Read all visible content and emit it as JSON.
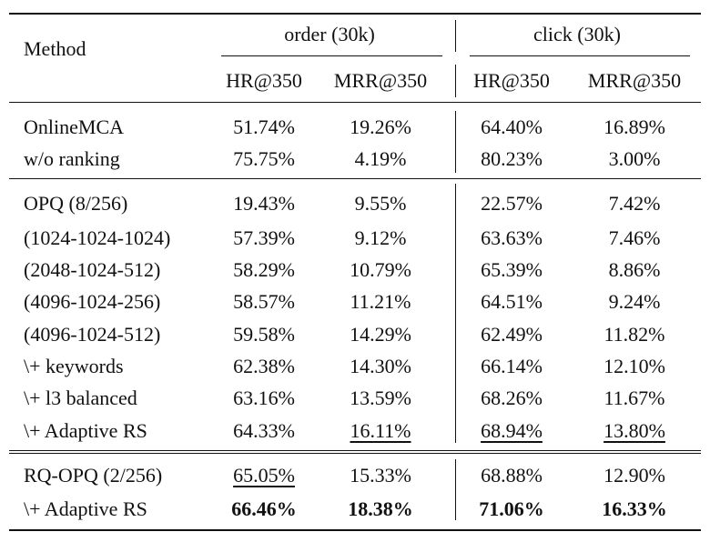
{
  "header": {
    "method": "Method",
    "groups": [
      "order (30k)",
      "click (30k)"
    ],
    "metrics": [
      "HR@350",
      "MRR@350",
      "HR@350",
      "MRR@350"
    ]
  },
  "groups": [
    {
      "rows": [
        {
          "method": "OnlineMCA",
          "values": [
            "51.74%",
            "19.26%",
            "64.40%",
            "16.89%"
          ],
          "style": [
            "",
            "",
            "",
            ""
          ]
        },
        {
          "method": "w/o ranking",
          "values": [
            "75.75%",
            "4.19%",
            "80.23%",
            "3.00%"
          ],
          "style": [
            "",
            "",
            "",
            ""
          ]
        }
      ]
    },
    {
      "rows": [
        {
          "method": "OPQ (8/256)",
          "values": [
            "19.43%",
            "9.55%",
            "22.57%",
            "7.42%"
          ],
          "style": [
            "",
            "",
            "",
            ""
          ]
        },
        {
          "method": "(1024-1024-1024)",
          "values": [
            "57.39%",
            "9.12%",
            "63.63%",
            "7.46%"
          ],
          "style": [
            "",
            "",
            "",
            ""
          ]
        },
        {
          "method": "(2048-1024-512)",
          "values": [
            "58.29%",
            "10.79%",
            "65.39%",
            "8.86%"
          ],
          "style": [
            "",
            "",
            "",
            ""
          ]
        },
        {
          "method": "(4096-1024-256)",
          "values": [
            "58.57%",
            "11.21%",
            "64.51%",
            "9.24%"
          ],
          "style": [
            "",
            "",
            "",
            ""
          ]
        },
        {
          "method": "(4096-1024-512)",
          "values": [
            "59.58%",
            "14.29%",
            "62.49%",
            "11.82%"
          ],
          "style": [
            "",
            "",
            "",
            ""
          ]
        },
        {
          "method": "\\+ keywords",
          "values": [
            "62.38%",
            "14.30%",
            "66.14%",
            "12.10%"
          ],
          "style": [
            "",
            "",
            "",
            ""
          ]
        },
        {
          "method": "\\+ l3 balanced",
          "values": [
            "63.16%",
            "13.59%",
            "68.26%",
            "11.67%"
          ],
          "style": [
            "",
            "",
            "",
            ""
          ]
        },
        {
          "method": "\\+ Adaptive RS",
          "values": [
            "64.33%",
            "16.11%",
            "68.94%",
            "13.80%"
          ],
          "style": [
            "",
            "underline",
            "underline",
            "underline"
          ]
        }
      ]
    },
    {
      "rows": [
        {
          "method": "RQ-OPQ (2/256)",
          "values": [
            "65.05%",
            "15.33%",
            "68.88%",
            "12.90%"
          ],
          "style": [
            "underline",
            "",
            "",
            ""
          ]
        },
        {
          "method": "\\+ Adaptive RS",
          "values": [
            "66.46%",
            "18.38%",
            "71.06%",
            "16.33%"
          ],
          "style": [
            "bold",
            "bold",
            "bold",
            "bold"
          ]
        }
      ]
    }
  ]
}
